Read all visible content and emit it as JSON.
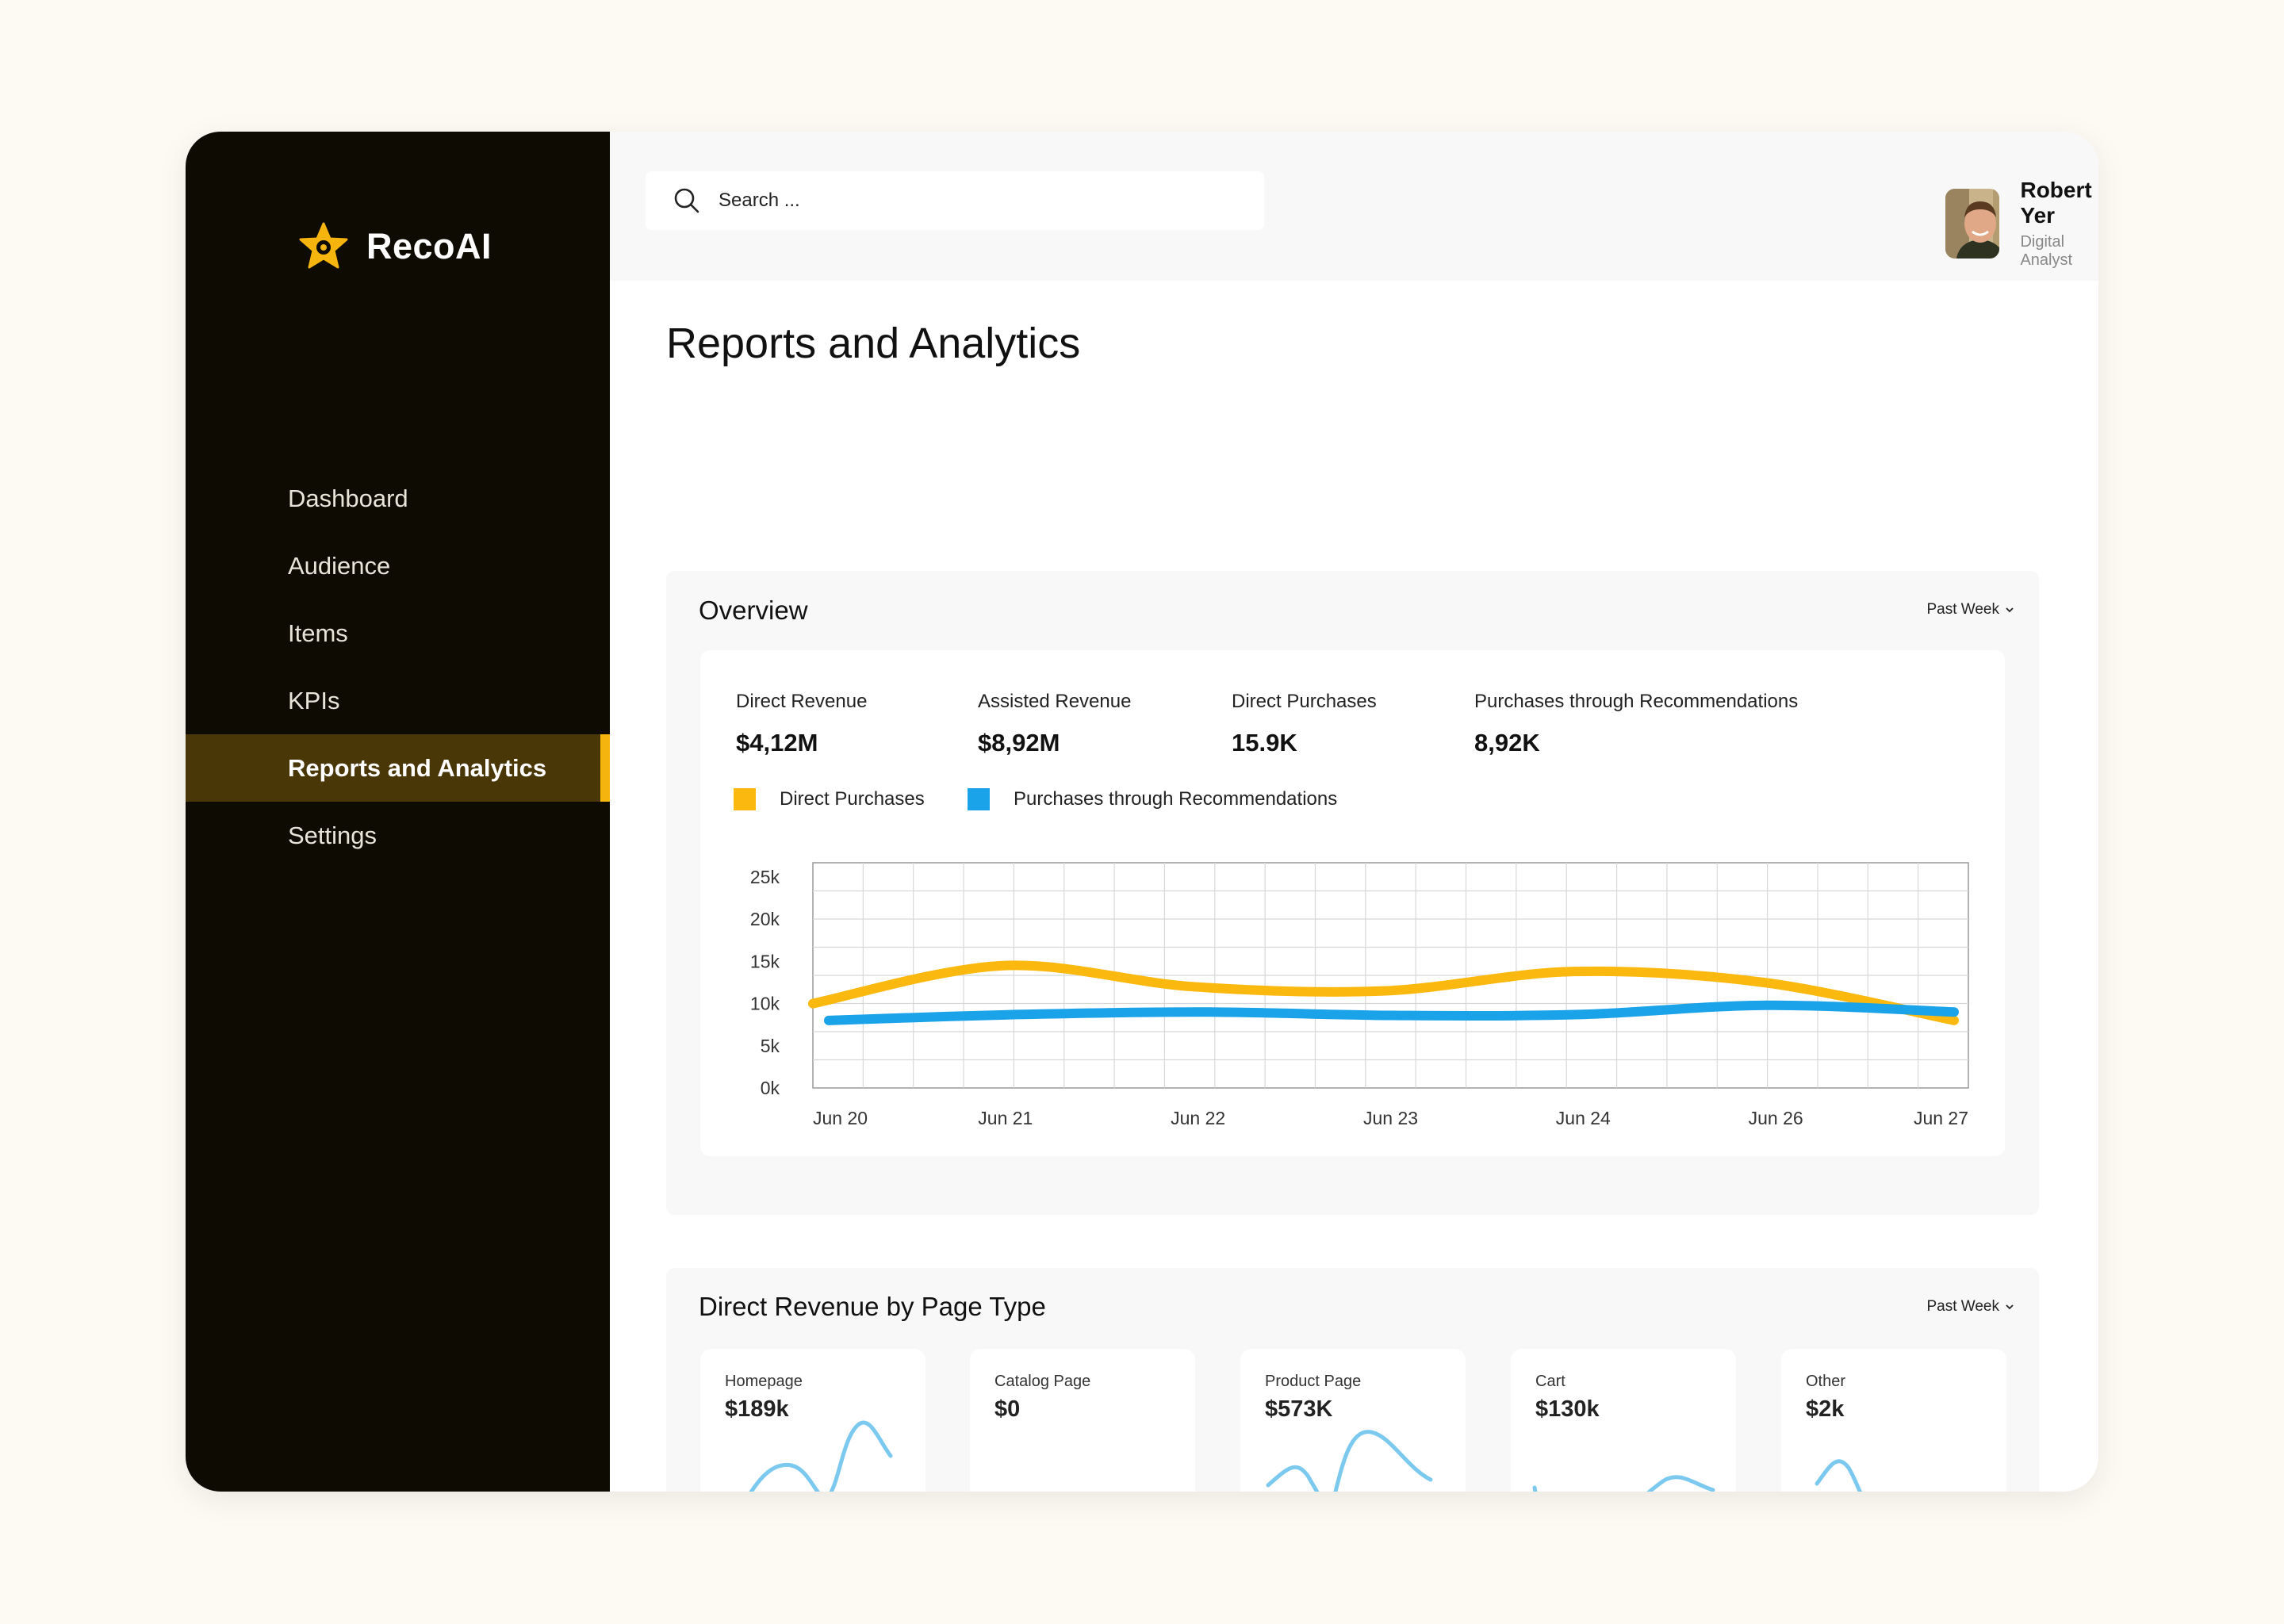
{
  "app": {
    "name": "RecoAI",
    "accent_color": "#f6b40e",
    "sidebar_color": "#0e0b02"
  },
  "sidebar": {
    "items": [
      {
        "label": "Dashboard",
        "active": false
      },
      {
        "label": "Audience",
        "active": false
      },
      {
        "label": "Items",
        "active": false
      },
      {
        "label": "KPIs",
        "active": false
      },
      {
        "label": "Reports and Analytics",
        "active": true
      },
      {
        "label": "Settings",
        "active": false
      }
    ]
  },
  "header": {
    "search_placeholder": "Search ...",
    "user": {
      "name": "Robert Yer",
      "role": "Digital Analyst"
    }
  },
  "page": {
    "title": "Reports and Analytics"
  },
  "overview": {
    "title": "Overview",
    "period": "Past Week",
    "stats": [
      {
        "label": "Direct Revenue",
        "value": "$4,12M"
      },
      {
        "label": "Assisted Revenue",
        "value": "$8,92M"
      },
      {
        "label": "Direct Purchases",
        "value": "15.9K"
      },
      {
        "label": "Purchases through Recommendations",
        "value": "8,92K"
      }
    ],
    "legend": [
      {
        "label": "Direct Purchases",
        "color": "#fbb90f"
      },
      {
        "label": "Purchases through Recommendations",
        "color": "#1aa3e8"
      }
    ]
  },
  "chart_data": {
    "type": "line",
    "x": [
      "Jun 20",
      "Jun 21",
      "Jun 22",
      "Jun 23",
      "Jun 24",
      "Jun 26",
      "Jun 27"
    ],
    "y_ticks": [
      "0k",
      "5k",
      "10k",
      "15k",
      "20k",
      "25k"
    ],
    "ylim": [
      0,
      25000
    ],
    "grid": true,
    "series": [
      {
        "name": "Direct Purchases",
        "color": "#fbb90f",
        "values": [
          10000,
          14500,
          12000,
          11500,
          13800,
          12500,
          8000
        ]
      },
      {
        "name": "Purchases through Recommendations",
        "color": "#1aa3e8",
        "values": [
          8000,
          8700,
          9000,
          8600,
          8700,
          9800,
          9000
        ]
      }
    ]
  },
  "revenue": {
    "title": "Direct Revenue by Page Type",
    "period": "Past Week",
    "spark_color": "#7cc9f0",
    "cards": [
      {
        "label": "Homepage",
        "value": "$189k"
      },
      {
        "label": "Catalog Page",
        "value": "$0"
      },
      {
        "label": "Product Page",
        "value": "$573K"
      },
      {
        "label": "Cart",
        "value": "$130k"
      },
      {
        "label": "Other",
        "value": "$2k"
      }
    ]
  }
}
